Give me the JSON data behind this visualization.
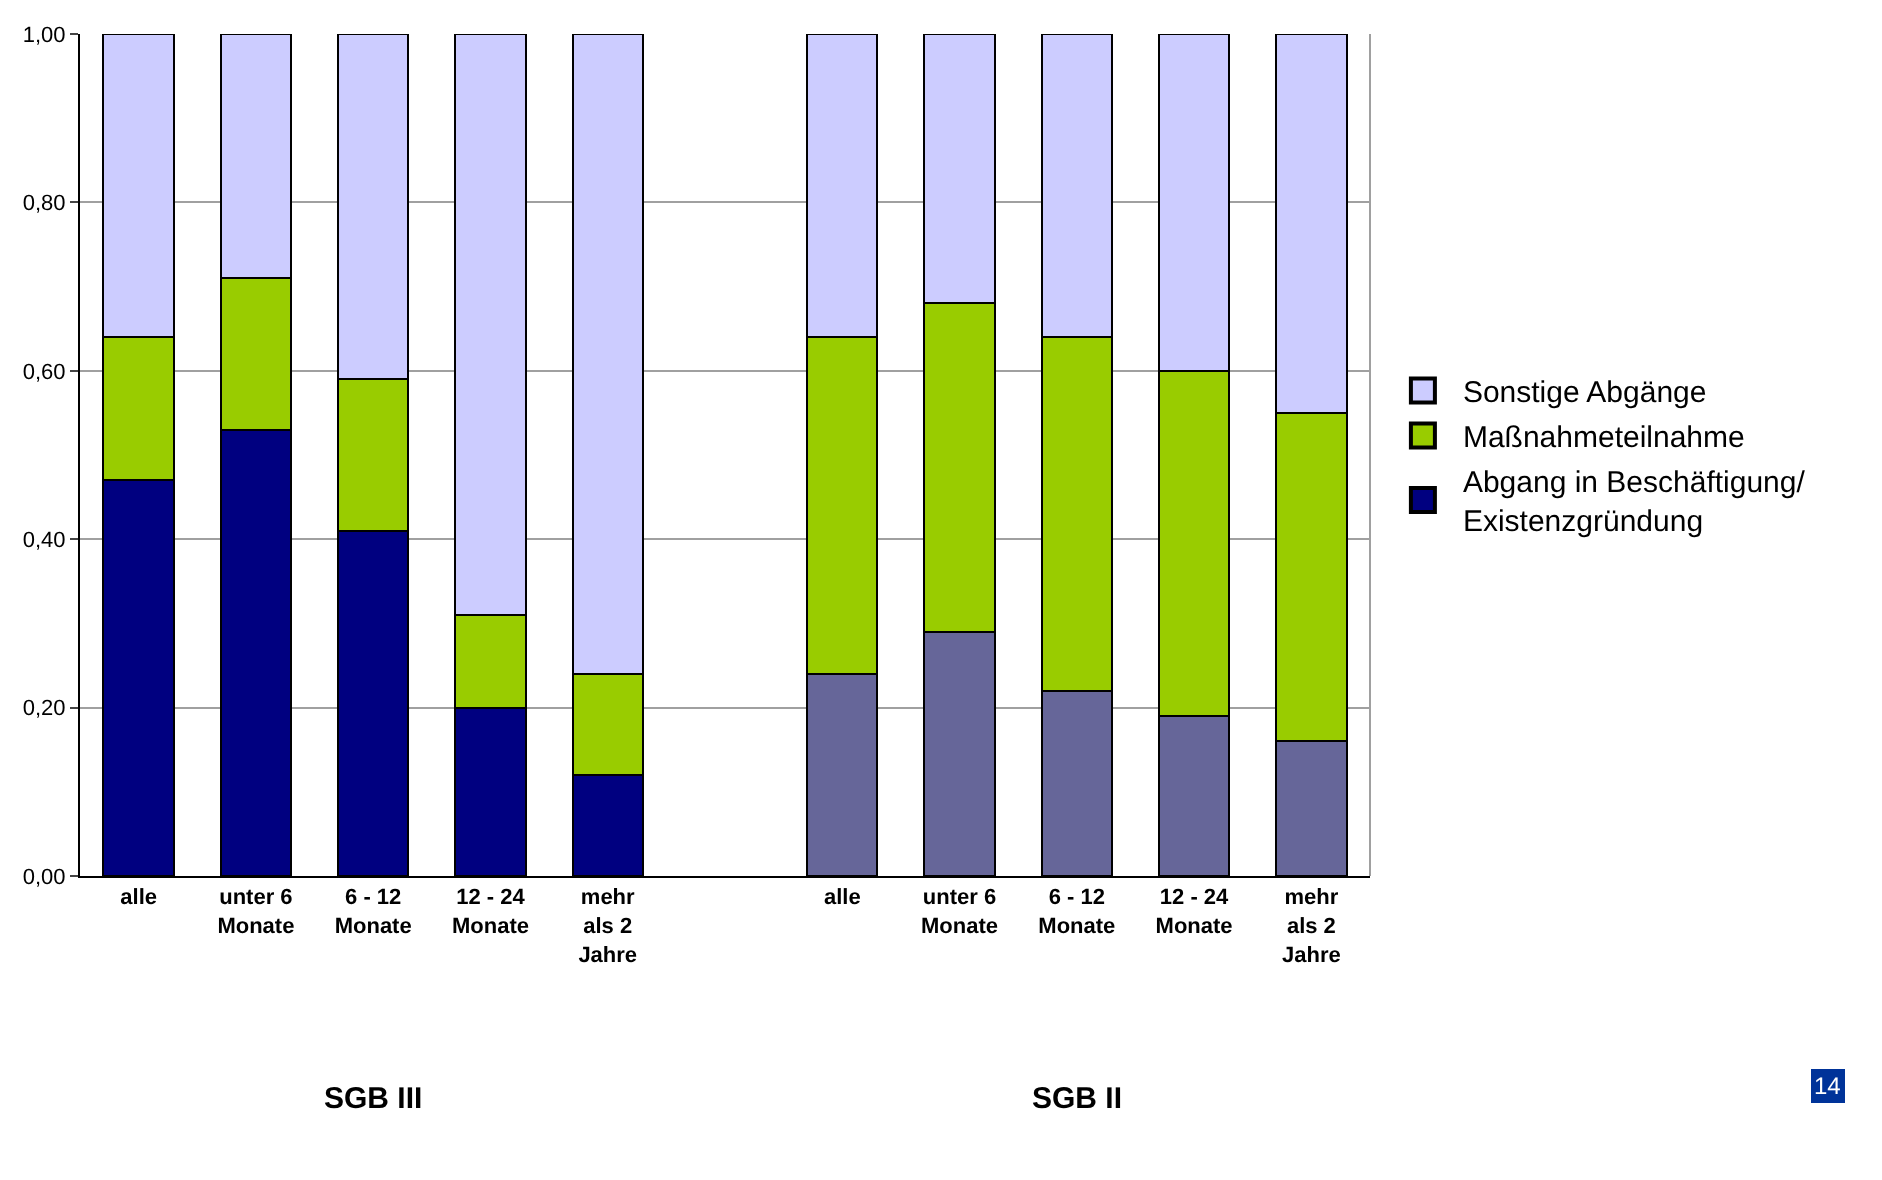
{
  "chart_data": {
    "type": "bar",
    "stacked": true,
    "categories": [
      "alle",
      "unter 6\nMonate",
      "6 - 12\nMonate",
      "12 - 24\nMonate",
      "mehr\nals 2\nJahre",
      null,
      "alle",
      "unter 6\nMonate",
      "6 - 12\nMonate",
      "12 - 24\nMonate",
      "mehr\nals 2\nJahre"
    ],
    "series": [
      {
        "name": "Abgang in Beschäftigung/\nExistenzgründung",
        "color": "#000080",
        "colors": [
          "#000080",
          "#000080",
          "#000080",
          "#000080",
          "#000080",
          null,
          "#666699",
          "#666699",
          "#666699",
          "#666699",
          "#666699"
        ],
        "values": [
          0.47,
          0.53,
          0.41,
          0.2,
          0.12,
          null,
          0.24,
          0.29,
          0.22,
          0.19,
          0.16
        ]
      },
      {
        "name": "Maßnahmeteilnahme",
        "color": "#99cc00",
        "values": [
          0.17,
          0.18,
          0.18,
          0.11,
          0.12,
          null,
          0.4,
          0.39,
          0.42,
          0.41,
          0.39
        ]
      },
      {
        "name": "Sonstige Abgänge",
        "color": "#ccccff",
        "values": [
          0.36,
          0.29,
          0.41,
          0.69,
          0.76,
          null,
          0.36,
          0.32,
          0.36,
          0.4,
          0.45
        ]
      }
    ],
    "ylim": [
      0,
      1
    ],
    "yticks": [
      {
        "value": 0,
        "label": "0,00"
      },
      {
        "value": 0.2,
        "label": "0,20"
      },
      {
        "value": 0.4,
        "label": "0,40"
      },
      {
        "value": 0.6,
        "label": "0,60"
      },
      {
        "value": 0.8,
        "label": "0,80"
      },
      {
        "value": 1,
        "label": "1,00"
      }
    ],
    "grid": "y",
    "legend": "right",
    "annotations": [
      "SGB III",
      "SGB II",
      "14"
    ]
  }
}
